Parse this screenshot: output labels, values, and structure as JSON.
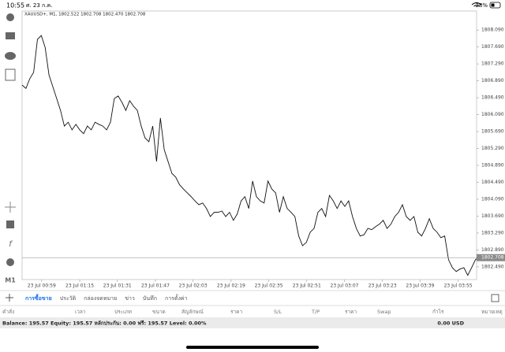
{
  "status_bar": {
    "time": "10:55",
    "date": "ศ. 23 ก.ค.",
    "battery": "28%"
  },
  "toolbar": {
    "timeframe": "M1"
  },
  "chart_data": {
    "type": "line",
    "title": "XAUUSD+, M1, 1802.522 1802.708 1802.470 1802.708",
    "color": "#111111",
    "values": [
      1806.79,
      1806.71,
      1806.94,
      1807.09,
      1807.87,
      1807.96,
      1807.68,
      1807.03,
      1806.75,
      1806.47,
      1806.19,
      1805.82,
      1805.91,
      1805.73,
      1805.86,
      1805.73,
      1805.64,
      1805.82,
      1805.73,
      1805.91,
      1805.86,
      1805.82,
      1805.73,
      1805.91,
      1806.47,
      1806.53,
      1806.38,
      1806.19,
      1806.42,
      1806.29,
      1806.19,
      1805.82,
      1805.54,
      1805.45,
      1805.82,
      1804.98,
      1806.01,
      1805.26,
      1804.98,
      1804.7,
      1804.61,
      1804.43,
      1804.33,
      1804.24,
      1804.15,
      1804.05,
      1803.96,
      1804.0,
      1803.87,
      1803.68,
      1803.78,
      1803.78,
      1803.81,
      1803.68,
      1803.78,
      1803.59,
      1803.74,
      1804.05,
      1804.15,
      1803.87,
      1804.52,
      1804.15,
      1804.05,
      1804.0,
      1804.52,
      1804.33,
      1804.24,
      1803.78,
      1804.15,
      1803.87,
      1803.78,
      1803.68,
      1803.22,
      1802.99,
      1803.07,
      1803.31,
      1803.4,
      1803.78,
      1803.87,
      1803.68,
      1804.18,
      1804.05,
      1803.87,
      1804.05,
      1803.92,
      1804.05,
      1803.68,
      1803.4,
      1803.22,
      1803.25,
      1803.4,
      1803.37,
      1803.44,
      1803.5,
      1803.59,
      1803.4,
      1803.5,
      1803.68,
      1803.78,
      1803.96,
      1803.68,
      1803.59,
      1803.68,
      1803.31,
      1803.22,
      1803.4,
      1803.63,
      1803.4,
      1803.31,
      1803.18,
      1803.22,
      1802.66,
      1802.47,
      1802.38,
      1802.44,
      1802.47,
      1802.29,
      1802.47,
      1802.66,
      1802.73
    ],
    "xlim": [
      0,
      122
    ],
    "xticks": [
      {
        "value": 5.1,
        "label": "23 Jul 00:59"
      },
      {
        "value": 15.0,
        "label": "23 Jul 01:15"
      },
      {
        "value": 24.8,
        "label": "23 Jul 01:31"
      },
      {
        "value": 34.7,
        "label": "23 Jul 01:47"
      },
      {
        "value": 44.5,
        "label": "23 Jul 02:03"
      },
      {
        "value": 54.4,
        "label": "23 Jul 02:19"
      },
      {
        "value": 64.2,
        "label": "23 Jul 02:35"
      },
      {
        "value": 74.1,
        "label": "23 Jul 02:51"
      },
      {
        "value": 83.9,
        "label": "23 Jul 03:07"
      },
      {
        "value": 93.8,
        "label": "23 Jul 03:23"
      },
      {
        "value": 103.6,
        "label": "23 Jul 03:39"
      },
      {
        "value": 113.5,
        "label": "23 Jul 03:55"
      }
    ],
    "ylim": [
      1802.19,
      1808.54
    ],
    "yticks": [
      {
        "value": 1808.09,
        "label": "1808.090"
      },
      {
        "value": 1807.69,
        "label": "1807.690"
      },
      {
        "value": 1807.29,
        "label": "1807.290"
      },
      {
        "value": 1806.89,
        "label": "1806.890"
      },
      {
        "value": 1806.49,
        "label": "1806.490"
      },
      {
        "value": 1806.09,
        "label": "1806.090"
      },
      {
        "value": 1805.69,
        "label": "1805.690"
      },
      {
        "value": 1805.29,
        "label": "1805.290"
      },
      {
        "value": 1804.89,
        "label": "1804.890"
      },
      {
        "value": 1804.49,
        "label": "1804.490"
      },
      {
        "value": 1804.09,
        "label": "1804.090"
      },
      {
        "value": 1803.69,
        "label": "1803.690"
      },
      {
        "value": 1803.29,
        "label": "1803.290"
      },
      {
        "value": 1802.89,
        "label": "1802.890"
      },
      {
        "value": 1802.49,
        "label": "1802.490"
      }
    ],
    "current_price": {
      "value": 1802.708,
      "label": "1802.708"
    }
  },
  "tabs": [
    "การซื้อขาย",
    "ประวัติ",
    "กล่องจดหมาย",
    "ข่าว",
    "บันทึก",
    "การตั้งค่า"
  ],
  "table": {
    "columns": [
      "คำสั่ง",
      "เวลา",
      "ประเภท",
      "ขนาด",
      "สัญลักษณ์",
      "ราคา",
      "S/L",
      "T/P",
      "ราคา",
      "Swap",
      "กำไร",
      "หมายเหตุ"
    ]
  },
  "summary": {
    "text": "Balance: 195.57 Equity: 195.57 หลักประกัน: 0.00 ฟรี: 195.57 Level: 0.00%",
    "profit": "0.00 USD"
  }
}
